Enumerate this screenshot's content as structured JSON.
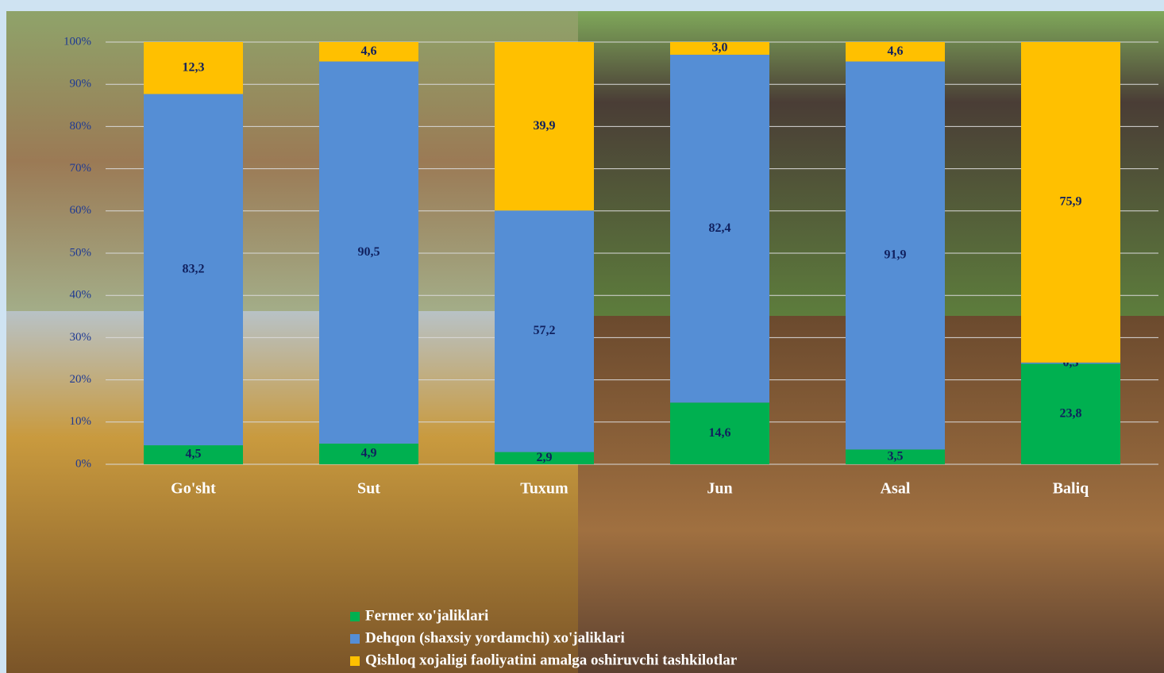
{
  "chart_data": {
    "type": "bar",
    "categories": [
      "Go'sht",
      "Sut",
      "Tuxum",
      "Jun",
      "Asal",
      "Baliq"
    ],
    "series": [
      {
        "name": "Fermer xo'jaliklari",
        "color": "#00b050",
        "values": [
          4.5,
          4.9,
          2.9,
          14.6,
          3.5,
          23.8
        ],
        "value_labels": [
          "4,5",
          "4,9",
          "2,9",
          "14,6",
          "3,5",
          "23,8"
        ]
      },
      {
        "name": "Dehqon (shaxsiy yordamchi) xo'jaliklari",
        "color": "#558ed5",
        "values": [
          83.2,
          90.5,
          57.2,
          82.4,
          91.9,
          0.3
        ],
        "value_labels": [
          "83,2",
          "90,5",
          "57,2",
          "82,4",
          "91,9",
          "0,3"
        ]
      },
      {
        "name": "Qishloq xojaligi faoliyatini amalga oshiruvchi tashkilotlar",
        "color": "#ffc000",
        "values": [
          12.3,
          4.6,
          39.9,
          3.0,
          4.6,
          75.9
        ],
        "value_labels": [
          "12,3",
          "4,6",
          "39,9",
          "3,0",
          "4,6",
          "75,9"
        ]
      }
    ],
    "stacked": true,
    "ylim": [
      0,
      100
    ],
    "yticks": [
      {
        "value": 0,
        "label": "0%"
      },
      {
        "value": 10,
        "label": "10%"
      },
      {
        "value": 20,
        "label": "20%"
      },
      {
        "value": 30,
        "label": "30%"
      },
      {
        "value": 40,
        "label": "40%"
      },
      {
        "value": 50,
        "label": "50%"
      },
      {
        "value": 60,
        "label": "60%"
      },
      {
        "value": 70,
        "label": "70%"
      },
      {
        "value": 80,
        "label": "80%"
      },
      {
        "value": 90,
        "label": "90%"
      },
      {
        "value": 100,
        "label": "100%"
      }
    ],
    "grid": true
  }
}
